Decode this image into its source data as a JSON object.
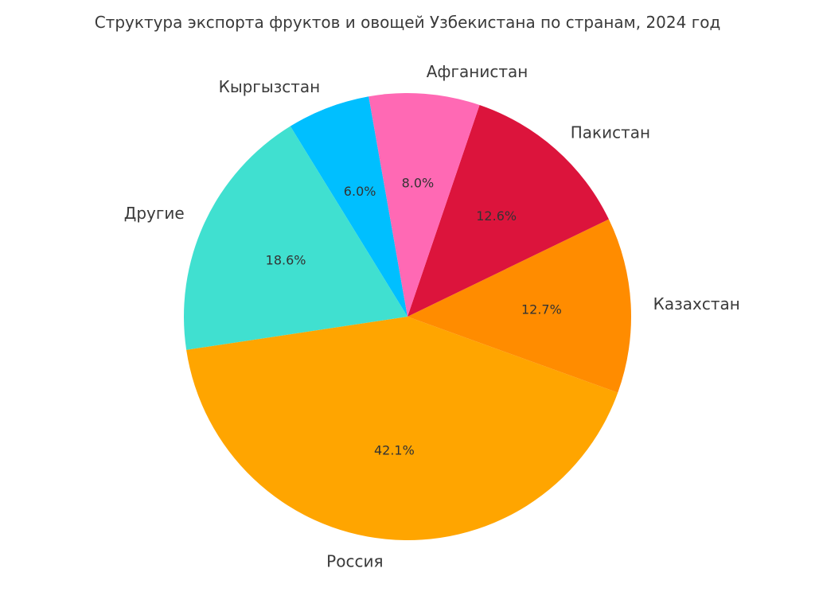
{
  "chart_data": {
    "type": "pie",
    "title": "Структура экспорта фруктов и овощей Узбекистана по странам, 2024 год",
    "start_angle_deg": 100,
    "direction": "counterclockwise",
    "slices": [
      {
        "label": "Кыргызстан",
        "value": 6.0,
        "pct_label": "6.0%",
        "color": "#00BFFF"
      },
      {
        "label": "Другие",
        "value": 18.6,
        "pct_label": "18.6%",
        "color": "#40E0D0"
      },
      {
        "label": "Россия",
        "value": 42.1,
        "pct_label": "42.1%",
        "color": "#FFA500"
      },
      {
        "label": "Казахстан",
        "value": 12.7,
        "pct_label": "12.7%",
        "color": "#FF8C00"
      },
      {
        "label": "Пакистан",
        "value": 12.6,
        "pct_label": "12.6%",
        "color": "#DC143C"
      },
      {
        "label": "Афганистан",
        "value": 8.0,
        "pct_label": "8.0%",
        "color": "#FF69B4"
      }
    ]
  }
}
